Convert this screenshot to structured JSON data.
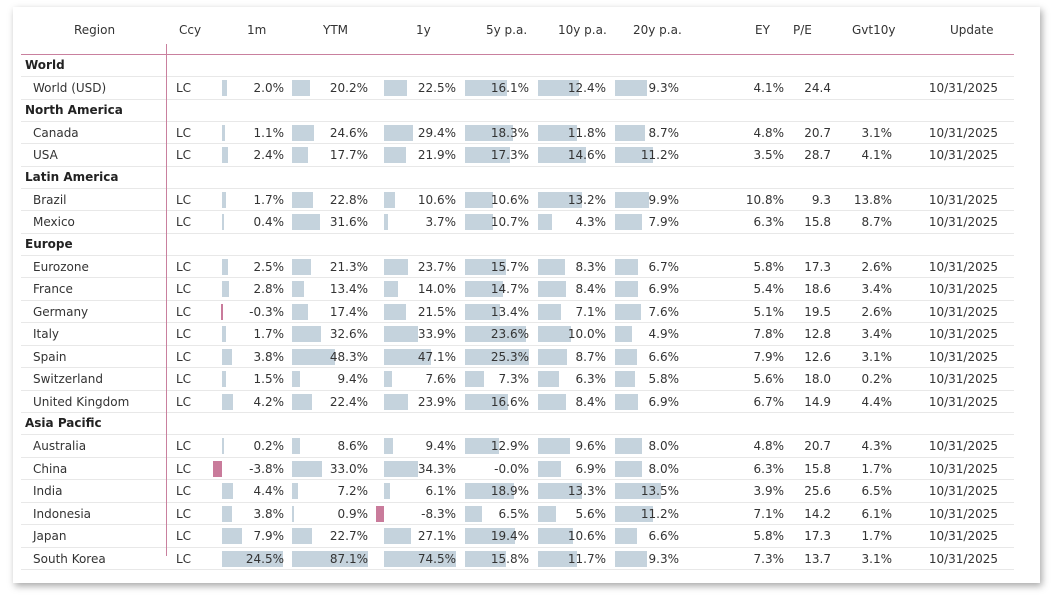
{
  "colors": {
    "accent": "#c9809e",
    "bar_positive": "#c5d3dd",
    "bar_negative": "#c97b9b"
  },
  "headers": {
    "region": "Region",
    "ccy": "Ccy",
    "m1": "1m",
    "ytm": "YTM",
    "y1": "1y",
    "y5": "5y p.a.",
    "y10": "10y p.a.",
    "y20": "20y p.a.",
    "ey": "EY",
    "pe": "P/E",
    "gvt": "Gvt10y",
    "update": "Update"
  },
  "groups": [
    {
      "name": "World",
      "rows": [
        {
          "region": "World (USD)",
          "ccy": "LC",
          "m1": "2.0%",
          "ytm": "20.2%",
          "y1": "22.5%",
          "y5": "16.1%",
          "y10": "12.4%",
          "y20": "9.3%",
          "ey": "4.1%",
          "pe": "24.4",
          "gvt": "",
          "update": "10/31/2025"
        }
      ]
    },
    {
      "name": "North America",
      "rows": [
        {
          "region": "Canada",
          "ccy": "LC",
          "m1": "1.1%",
          "ytm": "24.6%",
          "y1": "29.4%",
          "y5": "18.3%",
          "y10": "11.8%",
          "y20": "8.7%",
          "ey": "4.8%",
          "pe": "20.7",
          "gvt": "3.1%",
          "update": "10/31/2025"
        },
        {
          "region": "USA",
          "ccy": "LC",
          "m1": "2.4%",
          "ytm": "17.7%",
          "y1": "21.9%",
          "y5": "17.3%",
          "y10": "14.6%",
          "y20": "11.2%",
          "ey": "3.5%",
          "pe": "28.7",
          "gvt": "4.1%",
          "update": "10/31/2025"
        }
      ]
    },
    {
      "name": "Latin America",
      "rows": [
        {
          "region": "Brazil",
          "ccy": "LC",
          "m1": "1.7%",
          "ytm": "22.8%",
          "y1": "10.6%",
          "y5": "10.6%",
          "y10": "13.2%",
          "y20": "9.9%",
          "ey": "10.8%",
          "pe": "9.3",
          "gvt": "13.8%",
          "update": "10/31/2025"
        },
        {
          "region": "Mexico",
          "ccy": "LC",
          "m1": "0.4%",
          "ytm": "31.6%",
          "y1": "3.7%",
          "y5": "10.7%",
          "y10": "4.3%",
          "y20": "7.9%",
          "ey": "6.3%",
          "pe": "15.8",
          "gvt": "8.7%",
          "update": "10/31/2025"
        }
      ]
    },
    {
      "name": "Europe",
      "rows": [
        {
          "region": "Eurozone",
          "ccy": "LC",
          "m1": "2.5%",
          "ytm": "21.3%",
          "y1": "23.7%",
          "y5": "15.7%",
          "y10": "8.3%",
          "y20": "6.7%",
          "ey": "5.8%",
          "pe": "17.3",
          "gvt": "2.6%",
          "update": "10/31/2025"
        },
        {
          "region": "France",
          "ccy": "LC",
          "m1": "2.8%",
          "ytm": "13.4%",
          "y1": "14.0%",
          "y5": "14.7%",
          "y10": "8.4%",
          "y20": "6.9%",
          "ey": "5.4%",
          "pe": "18.6",
          "gvt": "3.4%",
          "update": "10/31/2025"
        },
        {
          "region": "Germany",
          "ccy": "LC",
          "m1": "-0.3%",
          "ytm": "17.4%",
          "y1": "21.5%",
          "y5": "13.4%",
          "y10": "7.1%",
          "y20": "7.6%",
          "ey": "5.1%",
          "pe": "19.5",
          "gvt": "2.6%",
          "update": "10/31/2025"
        },
        {
          "region": "Italy",
          "ccy": "LC",
          "m1": "1.7%",
          "ytm": "32.6%",
          "y1": "33.9%",
          "y5": "23.6%",
          "y10": "10.0%",
          "y20": "4.9%",
          "ey": "7.8%",
          "pe": "12.8",
          "gvt": "3.4%",
          "update": "10/31/2025"
        },
        {
          "region": "Spain",
          "ccy": "LC",
          "m1": "3.8%",
          "ytm": "48.3%",
          "y1": "47.1%",
          "y5": "25.3%",
          "y10": "8.7%",
          "y20": "6.6%",
          "ey": "7.9%",
          "pe": "12.6",
          "gvt": "3.1%",
          "update": "10/31/2025"
        },
        {
          "region": "Switzerland",
          "ccy": "LC",
          "m1": "1.5%",
          "ytm": "9.4%",
          "y1": "7.6%",
          "y5": "7.3%",
          "y10": "6.3%",
          "y20": "5.8%",
          "ey": "5.6%",
          "pe": "18.0",
          "gvt": "0.2%",
          "update": "10/31/2025"
        },
        {
          "region": "United Kingdom",
          "ccy": "LC",
          "m1": "4.2%",
          "ytm": "22.4%",
          "y1": "23.9%",
          "y5": "16.6%",
          "y10": "8.4%",
          "y20": "6.9%",
          "ey": "6.7%",
          "pe": "14.9",
          "gvt": "4.4%",
          "update": "10/31/2025"
        }
      ]
    },
    {
      "name": "Asia Pacific",
      "rows": [
        {
          "region": "Australia",
          "ccy": "LC",
          "m1": "0.2%",
          "ytm": "8.6%",
          "y1": "9.4%",
          "y5": "12.9%",
          "y10": "9.6%",
          "y20": "8.0%",
          "ey": "4.8%",
          "pe": "20.7",
          "gvt": "4.3%",
          "update": "10/31/2025"
        },
        {
          "region": "China",
          "ccy": "LC",
          "m1": "-3.8%",
          "ytm": "33.0%",
          "y1": "34.3%",
          "y5": "-0.0%",
          "y10": "6.9%",
          "y20": "8.0%",
          "ey": "6.3%",
          "pe": "15.8",
          "gvt": "1.7%",
          "update": "10/31/2025"
        },
        {
          "region": "India",
          "ccy": "LC",
          "m1": "4.4%",
          "ytm": "7.2%",
          "y1": "6.1%",
          "y5": "18.9%",
          "y10": "13.3%",
          "y20": "13.5%",
          "ey": "3.9%",
          "pe": "25.6",
          "gvt": "6.5%",
          "update": "10/31/2025"
        },
        {
          "region": "Indonesia",
          "ccy": "LC",
          "m1": "3.8%",
          "ytm": "0.9%",
          "y1": "-8.3%",
          "y5": "6.5%",
          "y10": "5.6%",
          "y20": "11.2%",
          "ey": "7.1%",
          "pe": "14.2",
          "gvt": "6.1%",
          "update": "10/31/2025"
        },
        {
          "region": "Japan",
          "ccy": "LC",
          "m1": "7.9%",
          "ytm": "22.7%",
          "y1": "27.1%",
          "y5": "19.4%",
          "y10": "10.6%",
          "y20": "6.6%",
          "ey": "5.8%",
          "pe": "17.3",
          "gvt": "1.7%",
          "update": "10/31/2025"
        },
        {
          "region": "South Korea",
          "ccy": "LC",
          "m1": "24.5%",
          "ytm": "87.1%",
          "y1": "74.5%",
          "y5": "15.8%",
          "y10": "11.7%",
          "y20": "9.3%",
          "ey": "7.3%",
          "pe": "13.7",
          "gvt": "3.1%",
          "update": "10/31/2025"
        }
      ]
    }
  ]
}
